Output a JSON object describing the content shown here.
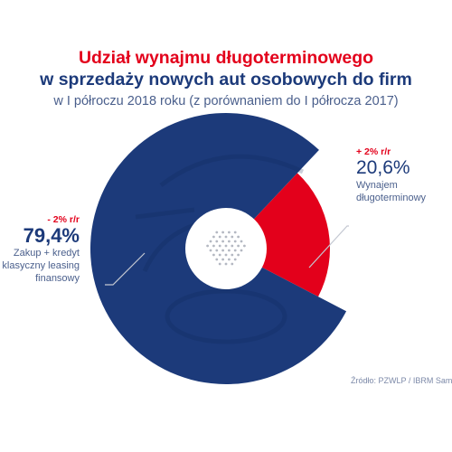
{
  "header": {
    "title_line1": "Udział wynajmu długoterminowego",
    "title_line2": "w sprzedaży nowych aut osobowych do firm",
    "subtitle": "w I półroczu 2018 roku (z porównaniem do I półrocza 2017)"
  },
  "chart_data": {
    "type": "pie",
    "title": "Udział wynajmu długoterminowego w sprzedaży nowych aut osobowych do firm",
    "subtitle": "w I półroczu 2018 roku (z porównaniem do I półrocza 2017)",
    "slices": [
      {
        "label_lines": [
          "Wynajem",
          "długoterminowy"
        ],
        "value": 20.6,
        "value_text": "20,6%",
        "change": "+ 2% r/r",
        "color": "#e3001b"
      },
      {
        "label_lines": [
          "Zakup + kredyt",
          "klasyczny leasing",
          "finansowy"
        ],
        "value": 79.4,
        "value_text": "79,4%",
        "change": "- 2% r/r",
        "color": "#1c3a7a"
      }
    ],
    "unit": "%"
  },
  "footer": {
    "source": "Źródło: PZWLP / IBRM Samar"
  },
  "colors": {
    "accent_red": "#e3001b",
    "navy": "#1c3a7a",
    "text_muted": "#4a5f8c"
  }
}
